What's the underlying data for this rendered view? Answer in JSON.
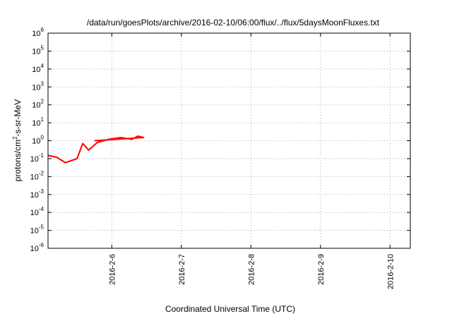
{
  "chart_data": {
    "type": "line",
    "title": "/data/run/goesPlots/archive/2016-02-10/06:00/flux/../flux/5daysMoonFluxes.txt",
    "xlabel": "Coordinated Universal Time (UTC)",
    "ylabel": "protons/cm²-s-sr-MeV",
    "yscale": "log",
    "ylim": [
      1e-06,
      1000000.0
    ],
    "xlim": [
      "2016-02-05 02:00",
      "2016-02-10 07:00"
    ],
    "grid": true,
    "legend": "none",
    "y_ticks": [
      {
        "value": 1e-06,
        "base": "10",
        "exp": "-6"
      },
      {
        "value": 1e-05,
        "base": "10",
        "exp": "-5"
      },
      {
        "value": 0.0001,
        "base": "10",
        "exp": "-4"
      },
      {
        "value": 0.001,
        "base": "10",
        "exp": "-3"
      },
      {
        "value": 0.01,
        "base": "10",
        "exp": "-2"
      },
      {
        "value": 0.1,
        "base": "10",
        "exp": "-1"
      },
      {
        "value": 1.0,
        "base": "10",
        "exp": "0"
      },
      {
        "value": 10.0,
        "base": "10",
        "exp": "1"
      },
      {
        "value": 100.0,
        "base": "10",
        "exp": "2"
      },
      {
        "value": 1000.0,
        "base": "10",
        "exp": "3"
      },
      {
        "value": 10000.0,
        "base": "10",
        "exp": "4"
      },
      {
        "value": 100000.0,
        "base": "10",
        "exp": "5"
      },
      {
        "value": 1000000.0,
        "base": "10",
        "exp": "6"
      }
    ],
    "x_ticks": [
      {
        "value": "2016-02-06",
        "label": "2016-2-6"
      },
      {
        "value": "2016-02-07",
        "label": "2016-2-7"
      },
      {
        "value": "2016-02-08",
        "label": "2016-2-8"
      },
      {
        "value": "2016-02-09",
        "label": "2016-2-9"
      },
      {
        "value": "2016-02-10",
        "label": "2016-2-10"
      }
    ],
    "series": [
      {
        "color": "#ff0000",
        "points": [
          [
            "2016-02-05 02:00",
            0.15
          ],
          [
            "2016-02-05 05:00",
            0.12
          ],
          [
            "2016-02-05 08:00",
            0.06
          ],
          [
            "2016-02-05 12:00",
            0.1
          ],
          [
            "2016-02-05 14:00",
            0.7
          ],
          [
            "2016-02-05 16:00",
            0.3
          ],
          [
            "2016-02-05 19:00",
            0.8
          ],
          [
            "2016-02-05 23:00",
            1.2
          ],
          [
            "2016-02-06 03:00",
            1.5
          ],
          [
            "2016-02-06 07:00",
            1.2
          ],
          [
            "2016-02-06 09:00",
            1.8
          ],
          [
            "2016-02-06 11:00",
            1.5
          ],
          [
            "2016-02-05 18:00",
            1.0
          ],
          [
            "2016-02-05 18:00",
            1.0
          ]
        ]
      }
    ]
  }
}
